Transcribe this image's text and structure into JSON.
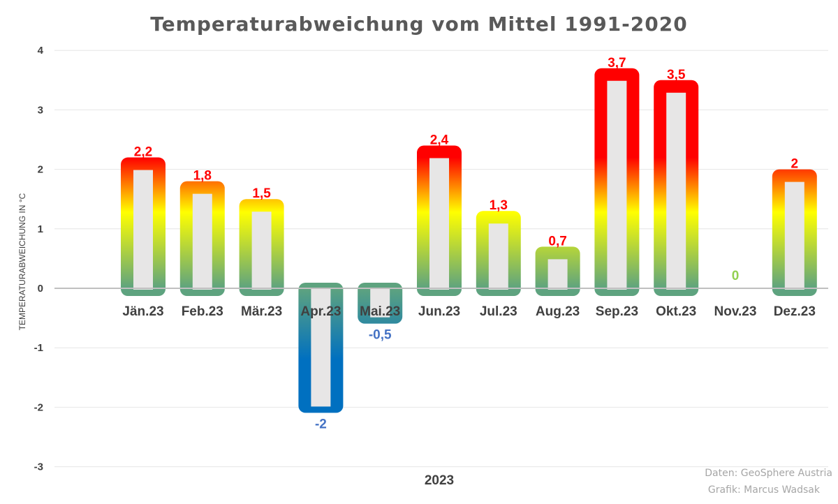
{
  "chart_data": {
    "type": "bar",
    "title": "Temperaturabweichung vom Mittel 1991-2020",
    "xlabel": "2023",
    "ylabel": "TEMPERATURABWEICHUNG IN °C",
    "ylim": [
      -3,
      4
    ],
    "yticks": [
      4,
      3,
      2,
      1,
      0,
      -1,
      -2,
      -3
    ],
    "grid": true,
    "categories": [
      "Jän.23",
      "Feb.23",
      "Mär.23",
      "Apr.23",
      "Mai.23",
      "Jun.23",
      "Jul.23",
      "Aug.23",
      "Sep.23",
      "Okt.23",
      "Nov.23",
      "Dez.23"
    ],
    "values": [
      2.2,
      1.8,
      1.5,
      -2,
      -0.5,
      2.4,
      1.3,
      0.7,
      3.7,
      3.5,
      0,
      2
    ],
    "value_labels": [
      "2,2",
      "1,8",
      "1,5",
      "-2",
      "-0,5",
      "2,4",
      "1,3",
      "0,7",
      "3,7",
      "3,5",
      "0",
      "2"
    ],
    "colors": {
      "positive_label": "#ff0000",
      "negative_label": "#4472c4",
      "zero_label": "#92d050",
      "warm_top": "#ff0000",
      "warm_mid": "#ffff00",
      "warm_base": "#5ea37f",
      "cold_bottom": "#0070c0",
      "cold_base": "#5ea37f",
      "bar_inner": "#e7e6e6",
      "grid": "#e6e6e6",
      "axis": "#bfbfbf"
    }
  },
  "credits": {
    "data": "Daten: GeoSphere Austria",
    "graphic": "Grafik: Marcus Wadsak"
  }
}
